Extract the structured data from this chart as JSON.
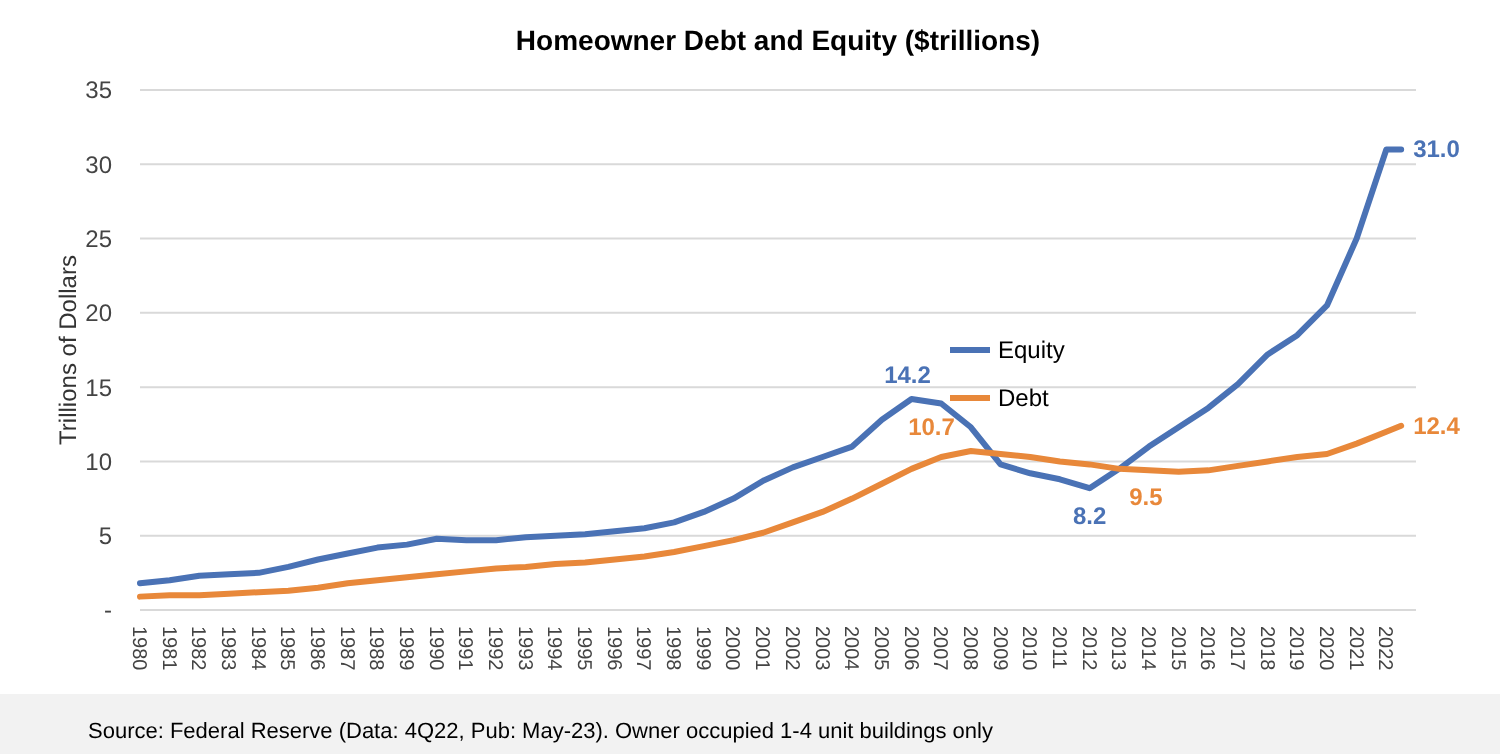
{
  "chart_data": {
    "type": "line",
    "title": "Homeowner Debt and Equity ($trillions)",
    "ylabel": "Trillions of Dollars",
    "x": [
      1980,
      1981,
      1982,
      1983,
      1984,
      1985,
      1986,
      1987,
      1988,
      1989,
      1990,
      1991,
      1992,
      1993,
      1994,
      1995,
      1996,
      1997,
      1998,
      1999,
      2000,
      2001,
      2002,
      2003,
      2004,
      2005,
      2006,
      2007,
      2008,
      2009,
      2010,
      2011,
      2012,
      2013,
      2014,
      2015,
      2016,
      2017,
      2018,
      2019,
      2020,
      2021,
      2022,
      2022.5
    ],
    "series": [
      {
        "name": "Equity",
        "color": "#4a72b5",
        "values": [
          1.8,
          2.0,
          2.3,
          2.4,
          2.5,
          2.9,
          3.4,
          3.8,
          4.2,
          4.4,
          4.8,
          4.7,
          4.7,
          4.9,
          5.0,
          5.1,
          5.3,
          5.5,
          5.9,
          6.6,
          7.5,
          8.7,
          9.6,
          10.3,
          11.0,
          12.8,
          14.2,
          13.9,
          12.3,
          9.8,
          9.2,
          8.8,
          8.2,
          9.5,
          11.0,
          12.3,
          13.6,
          15.2,
          17.2,
          18.5,
          20.5,
          25.0,
          31.0,
          31.0
        ]
      },
      {
        "name": "Debt",
        "color": "#e8883a",
        "values": [
          0.9,
          1.0,
          1.0,
          1.1,
          1.2,
          1.3,
          1.5,
          1.8,
          2.0,
          2.2,
          2.4,
          2.6,
          2.8,
          2.9,
          3.1,
          3.2,
          3.4,
          3.6,
          3.9,
          4.3,
          4.7,
          5.2,
          5.9,
          6.6,
          7.5,
          8.5,
          9.5,
          10.3,
          10.7,
          10.5,
          10.3,
          10.0,
          9.8,
          9.5,
          9.4,
          9.3,
          9.4,
          9.7,
          10.0,
          10.3,
          10.5,
          11.2,
          12.0,
          12.4
        ]
      }
    ],
    "xlim": [
      1980,
      2023
    ],
    "xticks": [
      1980,
      1981,
      1982,
      1983,
      1984,
      1985,
      1986,
      1987,
      1988,
      1989,
      1990,
      1991,
      1992,
      1993,
      1994,
      1995,
      1996,
      1997,
      1998,
      1999,
      2000,
      2001,
      2002,
      2003,
      2004,
      2005,
      2006,
      2007,
      2008,
      2009,
      2010,
      2011,
      2012,
      2013,
      2014,
      2015,
      2016,
      2017,
      2018,
      2019,
      2020,
      2021,
      2022
    ],
    "ylim": [
      0,
      35
    ],
    "yticks": [
      {
        "value": 0,
        "label": "-"
      },
      5,
      10,
      15,
      20,
      25,
      30,
      35
    ],
    "grid": "y",
    "legend": "center",
    "marker": "none",
    "line_style": "solid",
    "annotations": [
      {
        "text": "14.2",
        "x": 2006,
        "y": 14.2
      },
      {
        "text": "10.7",
        "x": 2008,
        "y": 10.7
      },
      {
        "text": "8.2",
        "x": 2012,
        "y": 8.2
      },
      {
        "text": "9.5",
        "x": 2013,
        "y": 9.5
      },
      {
        "text": "31.0",
        "x": 2022.5,
        "y": 31.0
      },
      {
        "text": "12.4",
        "x": 2022.5,
        "y": 12.4
      },
      "Source: Federal Reserve (Data: 4Q22, Pub: May-23). Owner occupied 1-4 unit buildings only"
    ]
  }
}
